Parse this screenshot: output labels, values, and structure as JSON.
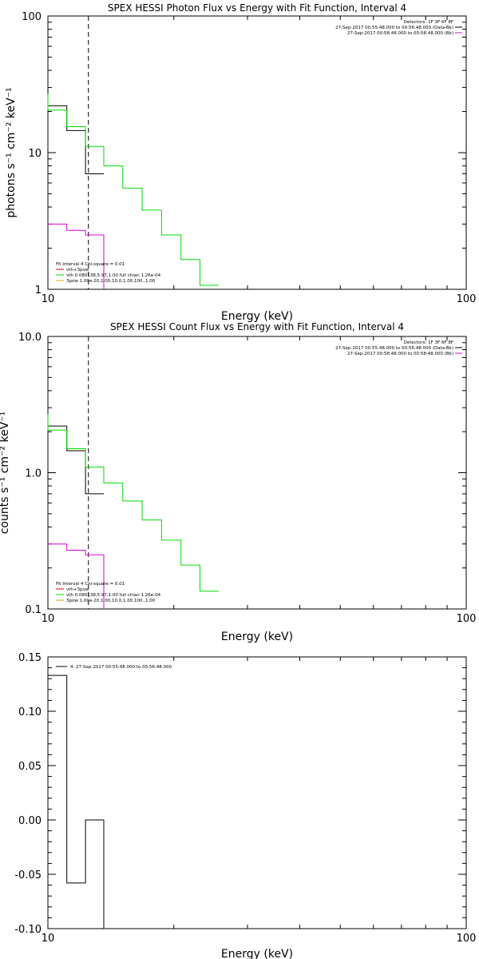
{
  "chart_data": [
    {
      "type": "line",
      "title": "SPEX HESSI Photon Flux vs Energy with Fit Function, Interval 4",
      "xlabel": "Energy (keV)",
      "ylabel": "photons s⁻¹ cm⁻² keV⁻¹",
      "xscale": "log",
      "yscale": "log",
      "xlim": [
        10,
        100
      ],
      "ylim": [
        1,
        100
      ],
      "xticks": [
        "10",
        "100"
      ],
      "yticks": [
        "1",
        "10",
        "100"
      ],
      "dashed_line_x": 12.5,
      "legend_top": [
        "Detectors: 1F 3F 6F 8F",
        "27-Sep-2017 00:55:48.000 to 00:56:48.000 (Data-Bk)",
        "27-Sep-2017 00:58:48.000 to 00:58:48.000 (Bk)"
      ],
      "legend_bottom": [
        "Fit Interval 4   Chi-square = 0.01",
        "vth+3pow",
        "vth 0.080138,5.97,1.00  full chian 1.26e-04",
        "3pow 1.00e-20,1.00,10.0,1.00,100.,1.00"
      ],
      "series": [
        {
          "color": "#000000",
          "edges": [
            10,
            11.1,
            12.3,
            13.6
          ],
          "values": [
            22,
            14.5,
            7
          ]
        },
        {
          "color": "#00dd00",
          "edges": [
            10,
            11.1,
            12.3,
            13.6,
            15.1,
            16.8,
            18.7,
            20.8,
            23.1,
            25.6
          ],
          "values": [
            20.5,
            15.5,
            11.1,
            8,
            5.5,
            3.8,
            2.5,
            1.65,
            1.07
          ],
          "start": 27
        },
        {
          "color": "#dd00dd",
          "edges": [
            10,
            11.1,
            12.3,
            13.6
          ],
          "values": [
            3,
            2.7,
            2.5
          ],
          "end": 1
        }
      ]
    },
    {
      "type": "line",
      "title": "SPEX HESSI Count Flux vs Energy with Fit Function, Interval 4",
      "xlabel": "Energy (keV)",
      "ylabel": "counts s⁻¹ cm⁻² keV⁻¹",
      "xscale": "log",
      "yscale": "log",
      "xlim": [
        10,
        100
      ],
      "ylim": [
        0.1,
        10
      ],
      "xticks": [
        "10",
        "100"
      ],
      "yticks": [
        "0.1",
        "1.0",
        "10.0"
      ],
      "dashed_line_x": 12.5,
      "legend_top": [
        "Detectors: 1F 3F 6F 8F",
        "27-Sep-2017 00:55:48.000 to 00:56:48.000 (Data-Bk)",
        "27-Sep-2017 00:58:48.000 to 00:58:48.000 (Bk)"
      ],
      "legend_bottom": [
        "Fit Interval 4   Chi-square = 0.01",
        "vth+3pow",
        "vth 0.080138,5.97,1.00  full chian 1.26e-04",
        "3pow 1.00e-20,1.00,10.0,1.00,100.,1.00"
      ],
      "series": [
        {
          "color": "#000000",
          "edges": [
            10,
            11.1,
            12.3,
            13.6
          ],
          "values": [
            2.2,
            1.45,
            0.7
          ]
        },
        {
          "color": "#00dd00",
          "edges": [
            10,
            11.1,
            12.3,
            13.6,
            15.1,
            16.8,
            18.7,
            20.8,
            23.1,
            25.6
          ],
          "values": [
            2.05,
            1.5,
            1.1,
            0.84,
            0.62,
            0.45,
            0.32,
            0.21,
            0.135
          ],
          "start": 2.7
        },
        {
          "color": "#dd00dd",
          "edges": [
            10,
            11.1,
            12.3,
            13.6
          ],
          "values": [
            0.3,
            0.27,
            0.25
          ],
          "end": 0.1
        }
      ]
    },
    {
      "type": "line",
      "title": "",
      "xlabel": "Energy (keV)",
      "ylabel": "",
      "xscale": "log",
      "yscale": "linear",
      "xlim": [
        10,
        100
      ],
      "ylim": [
        -0.1,
        0.15
      ],
      "xticks": [
        "10",
        "100"
      ],
      "yticks": [
        "-0.10",
        "-0.05",
        "0.00",
        "0.05",
        "0.10",
        "0.15"
      ],
      "legend_top": [
        "4. 27-Sep-2017 00:55:48.000 to 00:56:48.000"
      ],
      "series": [
        {
          "color": "#000000",
          "edges": [
            10,
            11.1,
            12.3,
            13.6
          ],
          "values": [
            0.133,
            -0.058,
            0.0
          ],
          "end": -0.1
        }
      ]
    }
  ]
}
